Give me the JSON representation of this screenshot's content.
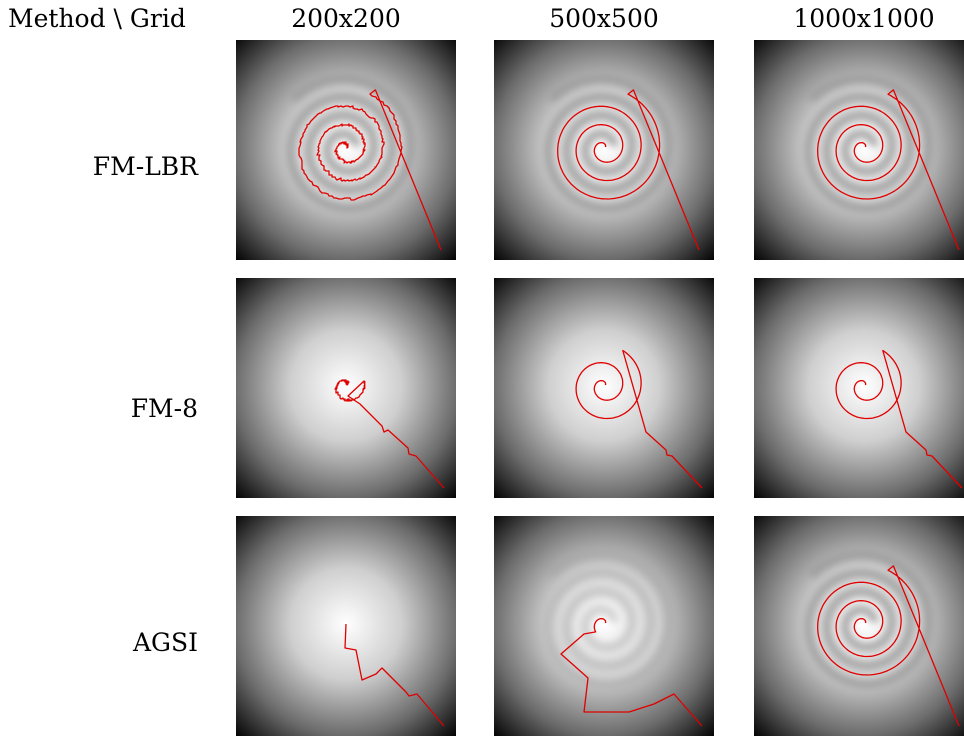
{
  "corner_label": "Method \\ Grid",
  "columns": [
    {
      "id": "g200",
      "label": "200x200"
    },
    {
      "id": "g500",
      "label": "500x500"
    },
    {
      "id": "g1000",
      "label": "1000x1000"
    }
  ],
  "rows": [
    {
      "id": "fm-lbr",
      "label": "FM-LBR"
    },
    {
      "id": "fm-8",
      "label": "FM-8"
    },
    {
      "id": "agsi",
      "label": "AGSI"
    }
  ],
  "colors": {
    "path": "#e00000",
    "field_center": "#ffffff",
    "field_edge": "#000000",
    "spiral_band": "#9a9a9a"
  },
  "panels": [
    {
      "row": "fm-lbr",
      "col": "g200",
      "spiral_band": true,
      "path": "spiral-2.8",
      "jagged": true
    },
    {
      "row": "fm-lbr",
      "col": "g500",
      "spiral_band": true,
      "path": "spiral-2.8",
      "jagged": false
    },
    {
      "row": "fm-lbr",
      "col": "g1000",
      "spiral_band": true,
      "path": "spiral-2.8",
      "jagged": false
    },
    {
      "row": "fm-8",
      "col": "g200",
      "spiral_band": false,
      "path": "spiral-short-staircase",
      "jagged": true
    },
    {
      "row": "fm-8",
      "col": "g500",
      "spiral_band": false,
      "path": "spiral-1.8-staircase",
      "jagged": false
    },
    {
      "row": "fm-8",
      "col": "g1000",
      "spiral_band": false,
      "path": "spiral-1.8-staircase",
      "jagged": false
    },
    {
      "row": "agsi",
      "col": "g200",
      "spiral_band": false,
      "path": "zigzag",
      "jagged": true
    },
    {
      "row": "agsi",
      "col": "g500",
      "spiral_band": "faint",
      "path": "hook-cutoff",
      "jagged": false
    },
    {
      "row": "agsi",
      "col": "g1000",
      "spiral_band": true,
      "path": "spiral-2.8",
      "jagged": false
    }
  ]
}
